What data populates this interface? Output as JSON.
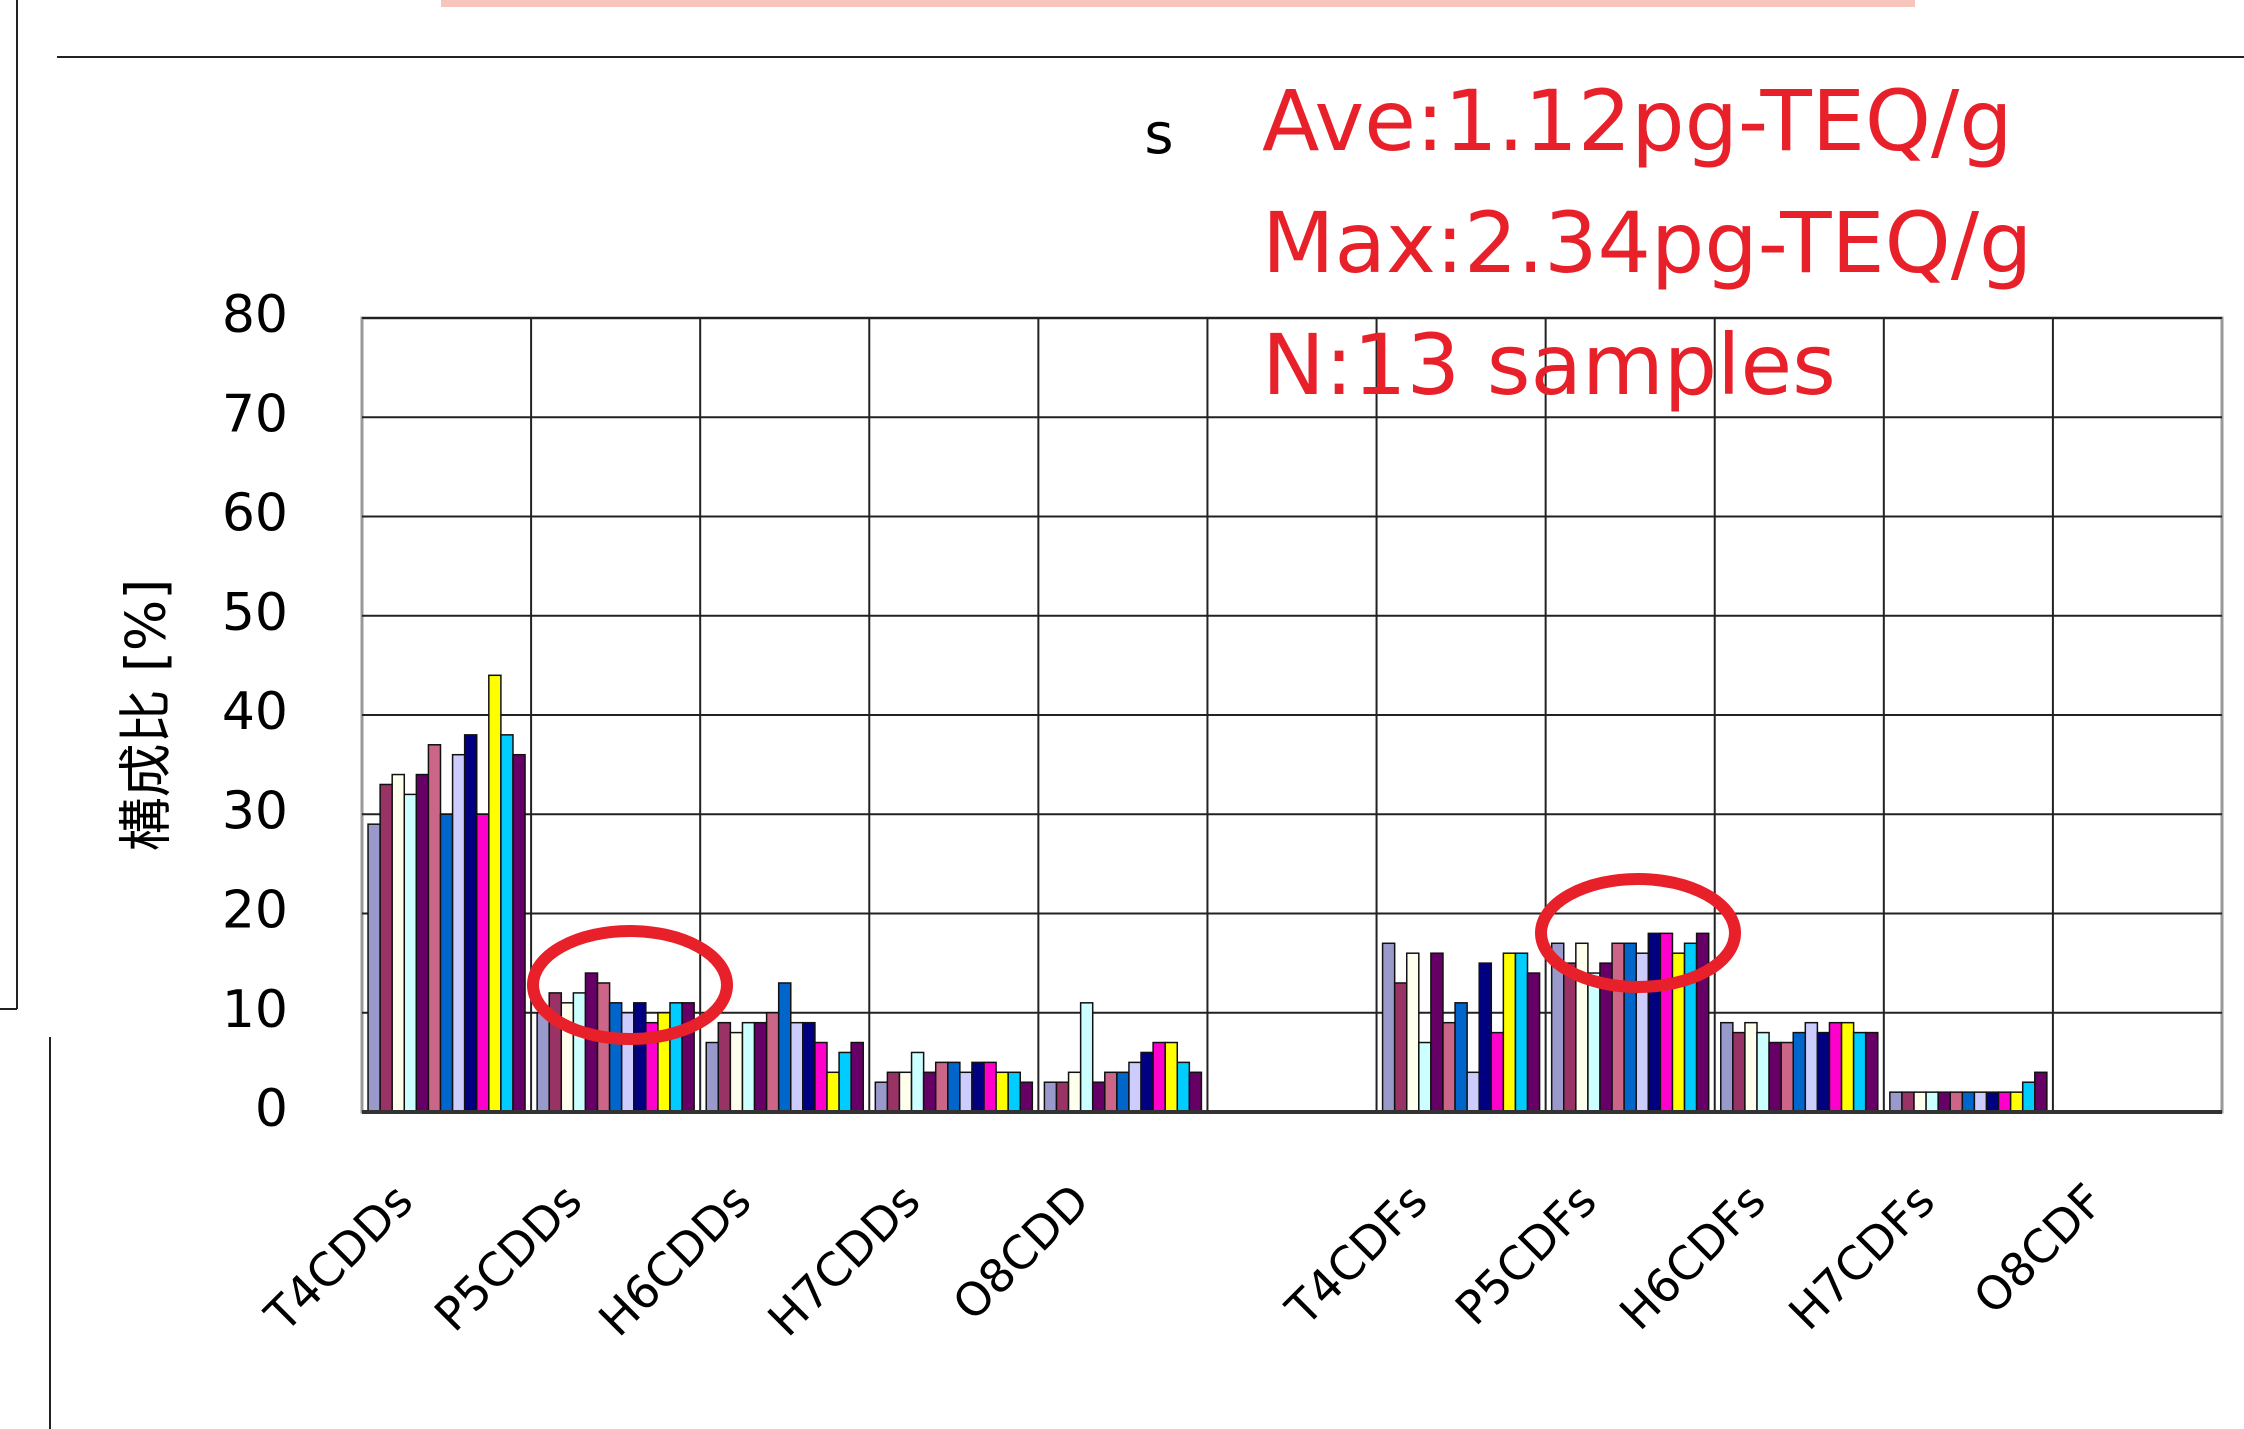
{
  "chart_data": {
    "type": "bar",
    "ylabel": "構成比 [%]",
    "annotations": [
      "s",
      "Ave:1.12pg-TEQ/g",
      "Max:2.34pg-TEQ/g",
      "N:13 samples"
    ],
    "categories": [
      "T4CDDs",
      "P5CDDs",
      "H6CDDs",
      "H7CDDs",
      "O8CDD",
      null,
      "T4CDFs",
      "P5CDFs",
      "H6CDFs",
      "H7CDFs",
      "O8CDF"
    ],
    "series": [
      {
        "color": "#9999cc",
        "values": [
          29,
          10,
          7,
          3,
          3,
          null,
          17,
          17,
          9,
          2,
          null
        ]
      },
      {
        "color": "#993366",
        "values": [
          33,
          12,
          9,
          4,
          3,
          null,
          13,
          15,
          8,
          2,
          null
        ]
      },
      {
        "color": "#ffffee",
        "values": [
          34,
          11,
          8,
          4,
          4,
          null,
          16,
          17,
          9,
          2,
          null
        ]
      },
      {
        "color": "#ccffff",
        "values": [
          32,
          12,
          9,
          6,
          11,
          null,
          7,
          14,
          8,
          2,
          null
        ]
      },
      {
        "color": "#660066",
        "values": [
          34,
          14,
          9,
          4,
          3,
          null,
          16,
          15,
          7,
          2,
          null
        ]
      },
      {
        "color": "#cc6688",
        "values": [
          37,
          13,
          10,
          5,
          4,
          null,
          9,
          17,
          7,
          2,
          null
        ]
      },
      {
        "color": "#0066cc",
        "values": [
          30,
          11,
          13,
          5,
          4,
          null,
          11,
          17,
          8,
          2,
          null
        ]
      },
      {
        "color": "#ccccff",
        "values": [
          36,
          10,
          9,
          4,
          5,
          null,
          4,
          16,
          9,
          2,
          null
        ]
      },
      {
        "color": "#000080",
        "values": [
          38,
          11,
          9,
          5,
          6,
          null,
          15,
          18,
          8,
          2,
          null
        ]
      },
      {
        "color": "#ff00cc",
        "values": [
          30,
          9,
          7,
          5,
          7,
          null,
          8,
          18,
          9,
          2,
          null
        ]
      },
      {
        "color": "#ffff00",
        "values": [
          44,
          10,
          4,
          4,
          7,
          null,
          16,
          16,
          9,
          2,
          null
        ]
      },
      {
        "color": "#00ccff",
        "values": [
          38,
          11,
          6,
          4,
          5,
          null,
          16,
          17,
          8,
          3,
          null
        ]
      },
      {
        "color": "#660066",
        "values": [
          36,
          11,
          7,
          3,
          4,
          null,
          14,
          18,
          8,
          4,
          null
        ]
      }
    ],
    "ylim": [
      0,
      80
    ],
    "yticks": [
      0,
      10,
      20,
      30,
      40,
      50,
      60,
      70,
      80
    ],
    "grid": true
  }
}
